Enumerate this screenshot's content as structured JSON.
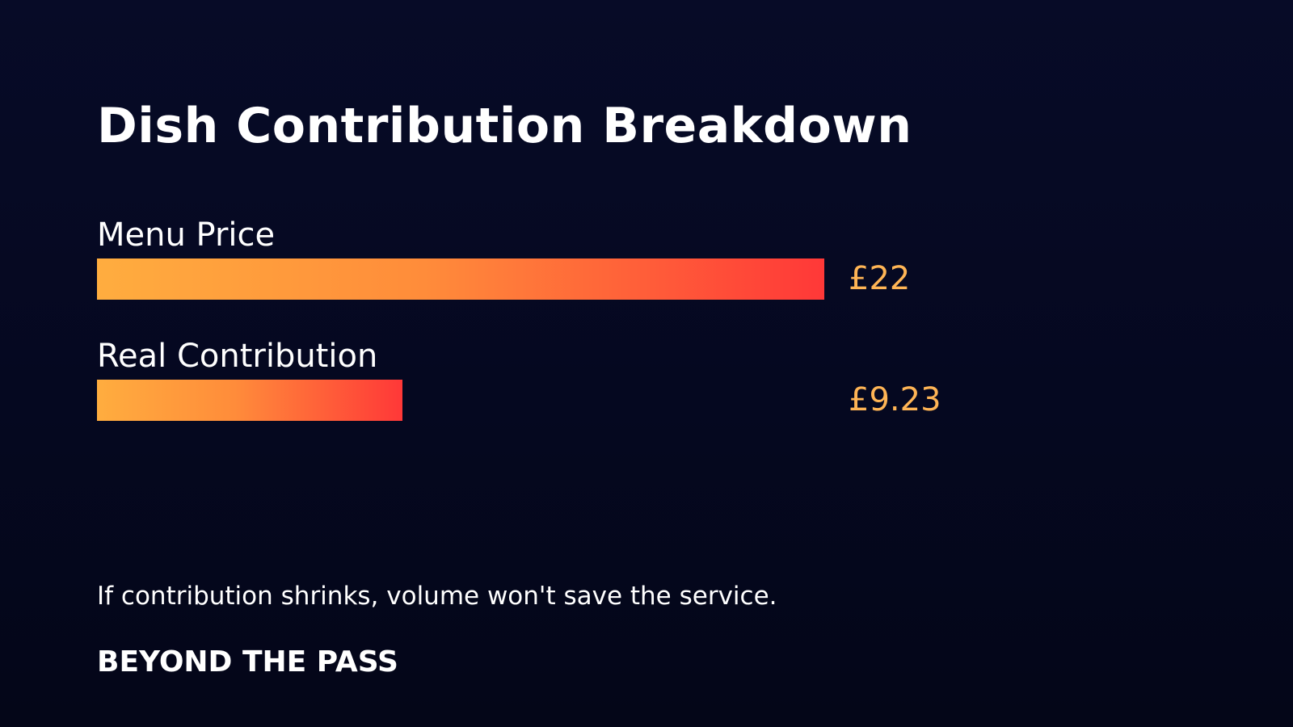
{
  "title": "Dish Contribution Breakdown",
  "chart_data": {
    "type": "bar",
    "orientation": "horizontal",
    "categories": [
      "Menu Price",
      "Real Contribution"
    ],
    "values": [
      22,
      9.23
    ],
    "value_labels": [
      "£22",
      "£9.23"
    ],
    "unit": "£",
    "xlim": [
      0,
      22
    ],
    "grid": false,
    "legend": "none",
    "colors": {
      "bar_gradient_start": "#ffad3f",
      "bar_gradient_end": "#ff3838",
      "value_text": "#ffb555"
    }
  },
  "footnote": "If contribution shrinks, volume won't save the service.",
  "brand": "BEYOND THE PASS",
  "colors": {
    "background": "#060a24",
    "text": "#ffffff"
  }
}
